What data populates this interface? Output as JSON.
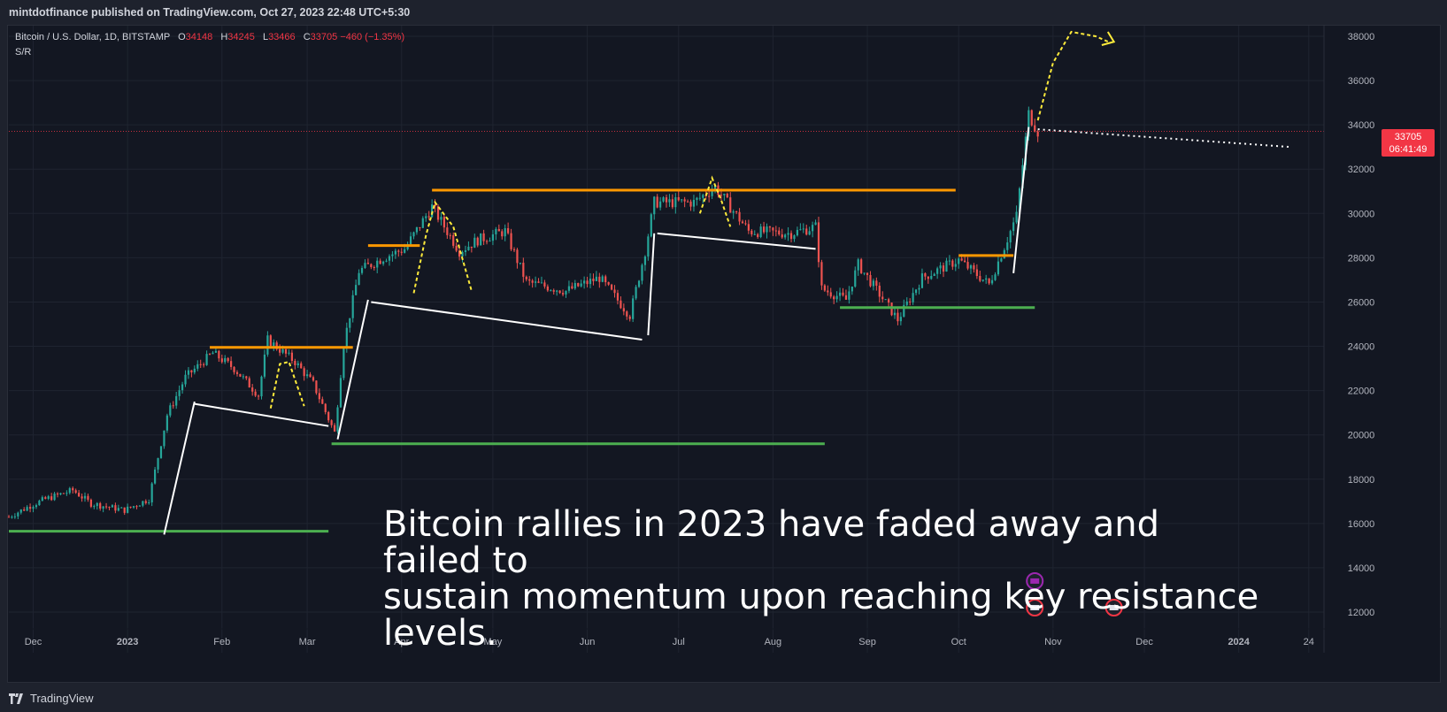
{
  "header": {
    "published": "mintdotfinance published on TradingView.com, Oct 27, 2023 22:48 UTC+5:30"
  },
  "legend": {
    "symbol": "Bitcoin / U.S. Dollar, 1D, BITSTAMP",
    "open_key": "O",
    "open": "34148",
    "high_key": "H",
    "high": "34245",
    "low_key": "L",
    "low": "33466",
    "close_key": "C",
    "close": "33705",
    "change": "−460 (−1.35%)",
    "indicator": "S/R"
  },
  "last_price": {
    "price": "33705",
    "countdown": "06:41:49"
  },
  "annotation": {
    "line1": "Bitcoin rallies in 2023 have faded away and failed to",
    "line2": "sustain momentum upon reaching key resistance levels."
  },
  "footer": {
    "brand": "TradingView"
  },
  "colors": {
    "background": "#131722",
    "grid": "#1f2430",
    "up": "#26a69a",
    "down": "#ef5350",
    "resistance": "#ff9800",
    "support": "#4caf50",
    "trend": "#ffffff",
    "forecast": "#ffeb3b",
    "last_price": "#f23645"
  },
  "chart_data": {
    "type": "candlestick",
    "title": "Bitcoin / U.S. Dollar, 1D, BITSTAMP",
    "ylim": [
      11000,
      38800
    ],
    "y_ticks": [
      12000,
      14000,
      16000,
      18000,
      20000,
      22000,
      24000,
      26000,
      28000,
      30000,
      32000,
      34000,
      36000,
      38000
    ],
    "x_ticks": [
      "Dec",
      "2023",
      "Feb",
      "Mar",
      "Apr",
      "May",
      "Jun",
      "Jul",
      "Aug",
      "Sep",
      "Oct",
      "Nov",
      "Dec",
      "2024",
      "24"
    ],
    "xlim": [
      "2022-11-23",
      "2024-01-29"
    ],
    "close_path": [
      {
        "date": "2022-11-23",
        "price": 16300
      },
      {
        "date": "2022-11-30",
        "price": 16800
      },
      {
        "date": "2022-12-05",
        "price": 17100
      },
      {
        "date": "2022-12-14",
        "price": 17500
      },
      {
        "date": "2022-12-20",
        "price": 16900
      },
      {
        "date": "2022-12-31",
        "price": 16600
      },
      {
        "date": "2023-01-08",
        "price": 17100
      },
      {
        "date": "2023-01-14",
        "price": 20900
      },
      {
        "date": "2023-01-20",
        "price": 22600
      },
      {
        "date": "2023-01-29",
        "price": 23700
      },
      {
        "date": "2023-02-05",
        "price": 23000
      },
      {
        "date": "2023-02-13",
        "price": 21800
      },
      {
        "date": "2023-02-16",
        "price": 24300
      },
      {
        "date": "2023-02-25",
        "price": 23300
      },
      {
        "date": "2023-03-03",
        "price": 22300
      },
      {
        "date": "2023-03-10",
        "price": 20100
      },
      {
        "date": "2023-03-13",
        "price": 24100
      },
      {
        "date": "2023-03-18",
        "price": 27400
      },
      {
        "date": "2023-03-26",
        "price": 28000
      },
      {
        "date": "2023-04-02",
        "price": 28400
      },
      {
        "date": "2023-04-11",
        "price": 30300
      },
      {
        "date": "2023-04-20",
        "price": 28300
      },
      {
        "date": "2023-04-26",
        "price": 28800
      },
      {
        "date": "2023-05-05",
        "price": 29200
      },
      {
        "date": "2023-05-12",
        "price": 26900
      },
      {
        "date": "2023-05-25",
        "price": 26500
      },
      {
        "date": "2023-06-05",
        "price": 27100
      },
      {
        "date": "2023-06-15",
        "price": 25400
      },
      {
        "date": "2023-06-20",
        "price": 28300
      },
      {
        "date": "2023-06-23",
        "price": 30500
      },
      {
        "date": "2023-07-06",
        "price": 30500
      },
      {
        "date": "2023-07-13",
        "price": 31200
      },
      {
        "date": "2023-07-24",
        "price": 29200
      },
      {
        "date": "2023-08-07",
        "price": 29100
      },
      {
        "date": "2023-08-15",
        "price": 29400
      },
      {
        "date": "2023-08-17",
        "price": 26600
      },
      {
        "date": "2023-08-25",
        "price": 26100
      },
      {
        "date": "2023-08-29",
        "price": 27700
      },
      {
        "date": "2023-09-11",
        "price": 25200
      },
      {
        "date": "2023-09-19",
        "price": 27100
      },
      {
        "date": "2023-10-01",
        "price": 27900
      },
      {
        "date": "2023-10-11",
        "price": 26800
      },
      {
        "date": "2023-10-16",
        "price": 28500
      },
      {
        "date": "2023-10-20",
        "price": 29900
      },
      {
        "date": "2023-10-24",
        "price": 34500
      },
      {
        "date": "2023-10-27",
        "price": 33705
      }
    ],
    "support_levels": [
      {
        "price": 15650,
        "from": "2022-11-23",
        "to": "2023-03-08"
      },
      {
        "price": 19600,
        "from": "2023-03-09",
        "to": "2023-08-18"
      },
      {
        "price": 25750,
        "from": "2023-08-23",
        "to": "2023-10-26"
      }
    ],
    "resistance_levels": [
      {
        "price": 23950,
        "from": "2023-01-28",
        "to": "2023-03-16"
      },
      {
        "price": 28550,
        "from": "2023-03-21",
        "to": "2023-04-07"
      },
      {
        "price": 31050,
        "from": "2023-04-11",
        "to": "2023-09-30"
      },
      {
        "price": 28100,
        "from": "2023-10-01",
        "to": "2023-10-19"
      }
    ],
    "trend_lines": [
      {
        "from": {
          "date": "2023-01-13",
          "price": 15500
        },
        "to": {
          "date": "2023-01-23",
          "price": 21500
        }
      },
      {
        "from": {
          "date": "2023-01-23",
          "price": 21400
        },
        "to": {
          "date": "2023-03-08",
          "price": 20400
        }
      },
      {
        "from": {
          "date": "2023-03-11",
          "price": 19800
        },
        "to": {
          "date": "2023-03-21",
          "price": 26100
        }
      },
      {
        "from": {
          "date": "2023-03-22",
          "price": 26000
        },
        "to": {
          "date": "2023-06-19",
          "price": 24300
        }
      },
      {
        "from": {
          "date": "2023-06-21",
          "price": 24500
        },
        "to": {
          "date": "2023-06-23",
          "price": 29100
        }
      },
      {
        "from": {
          "date": "2023-06-24",
          "price": 29100
        },
        "to": {
          "date": "2023-08-15",
          "price": 28400
        }
      },
      {
        "from": {
          "date": "2023-10-19",
          "price": 27300
        },
        "to": {
          "date": "2023-10-24",
          "price": 33900
        }
      }
    ],
    "last_price": 33705,
    "ohlc_last": {
      "open": 34148,
      "high": 34245,
      "low": 33466,
      "close": 33705,
      "change": -460,
      "change_pct": -1.35
    }
  }
}
